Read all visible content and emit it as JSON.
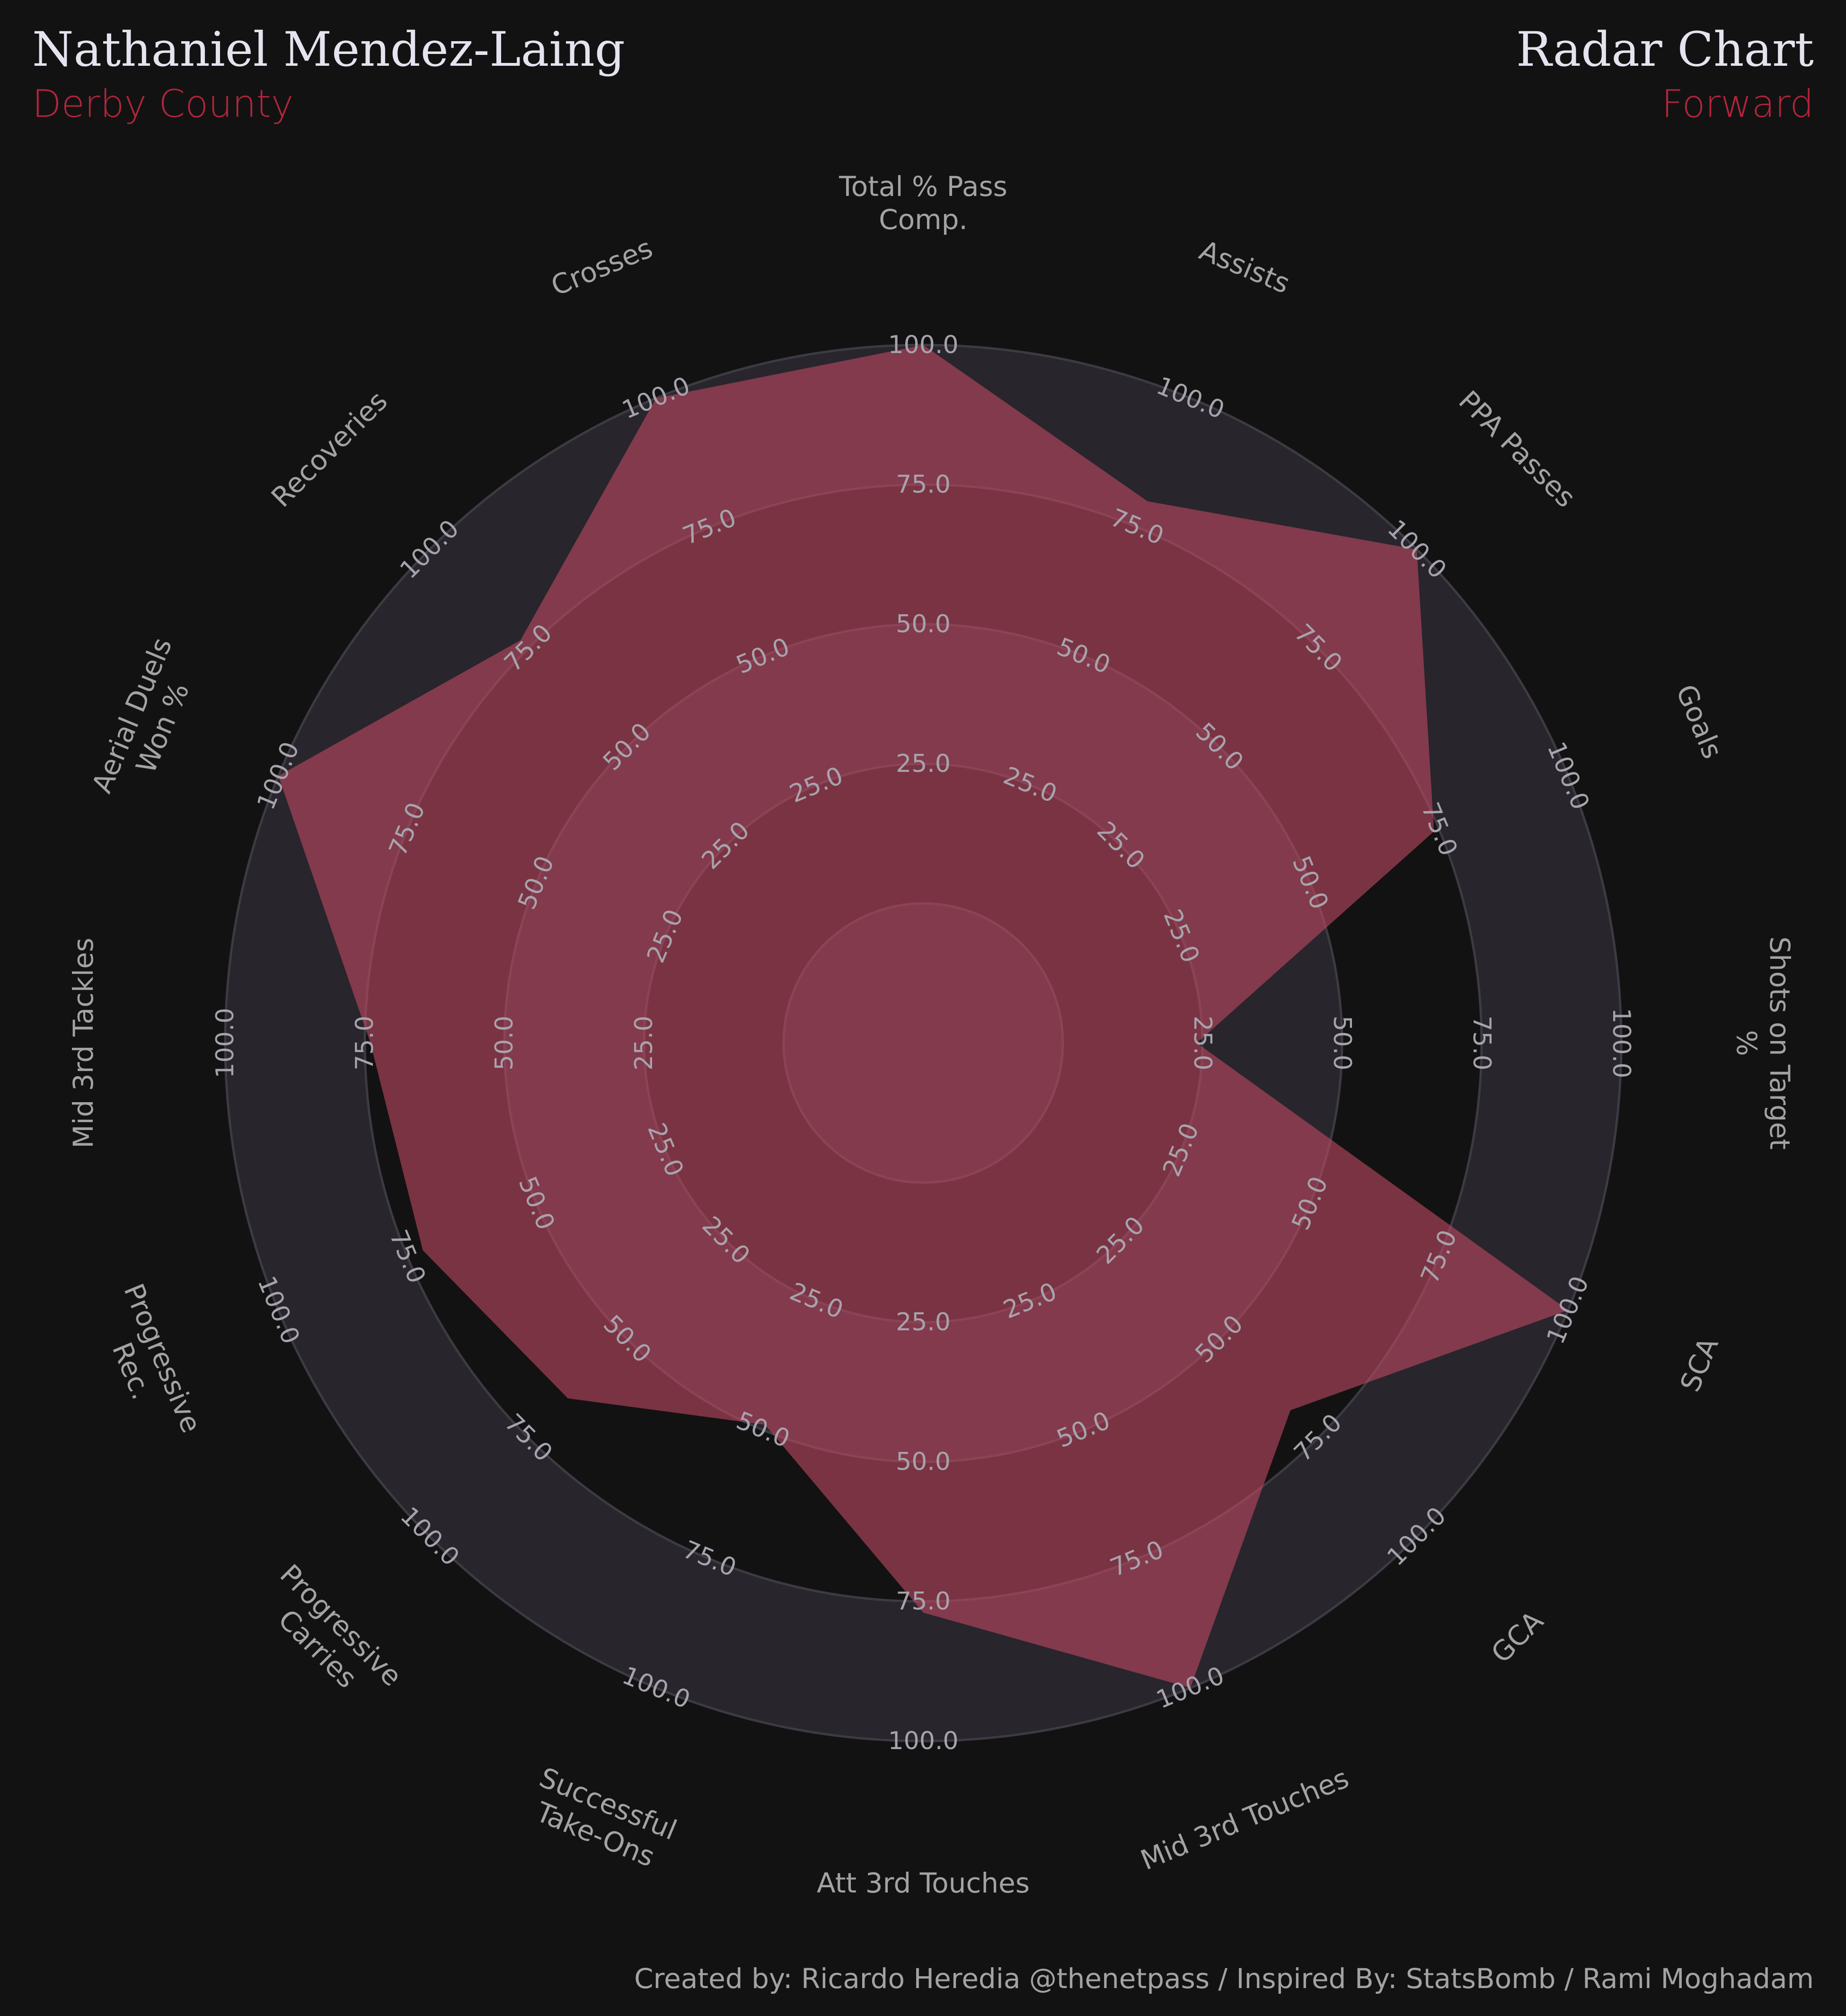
{
  "header": {
    "player_name": "Nathaniel Mendez-Laing",
    "team": "Derby County",
    "chart_title": "Radar Chart",
    "position": "Forward"
  },
  "footer": {
    "credit": "Created by: Ricardo Heredia @thenetpass / Inspired By: StatsBomb / Rami Moghadam"
  },
  "colors": {
    "background": "#121212",
    "ring_light": "#28252c",
    "ring_dark": "#121212",
    "radar_fill": "#c04a62",
    "radar_overlap": "#cf6a85",
    "accent": "#b2253c",
    "title_text": "#e6e3ef",
    "label_text": "#a3a3a3"
  },
  "chart_data": {
    "type": "radar",
    "categories": [
      "Total % Pass Comp.",
      "Assists",
      "PPA Passes",
      "Goals",
      "Shots on Target %",
      "SCA",
      "GCA",
      "Mid 3rd Touches",
      "Att 3rd Touches",
      "Successful Take-Ons",
      "Progressive Carries",
      "Progressive Rec.",
      "Mid 3rd Tackles",
      "Aerial Duels Won %",
      "Recoveries",
      "Crosses"
    ],
    "category_label_lines": [
      [
        "Total % Pass",
        "Comp."
      ],
      [
        "Assists"
      ],
      [
        "PPA Passes"
      ],
      [
        "Goals"
      ],
      [
        "Shots on Target",
        "%"
      ],
      [
        "SCA"
      ],
      [
        "GCA"
      ],
      [
        "Mid 3rd Touches"
      ],
      [
        "Att 3rd Touches"
      ],
      [
        "Successful",
        "Take-Ons"
      ],
      [
        "Progressive",
        "Carries"
      ],
      [
        "Progressive",
        "Rec."
      ],
      [
        "Mid 3rd Tackles"
      ],
      [
        "Aerial Duels",
        "Won %"
      ],
      [
        "Recoveries"
      ],
      [
        "Crosses"
      ]
    ],
    "series": [
      {
        "values": [
          100,
          80,
          100,
          74,
          24,
          100,
          68,
          100,
          77,
          49,
          65,
          72,
          74,
          100,
          77,
          100
        ]
      }
    ],
    "rlim": [
      0,
      100
    ],
    "ring_tick_labels": [
      "25.0",
      "50.0",
      "75.0",
      "100.0"
    ]
  }
}
